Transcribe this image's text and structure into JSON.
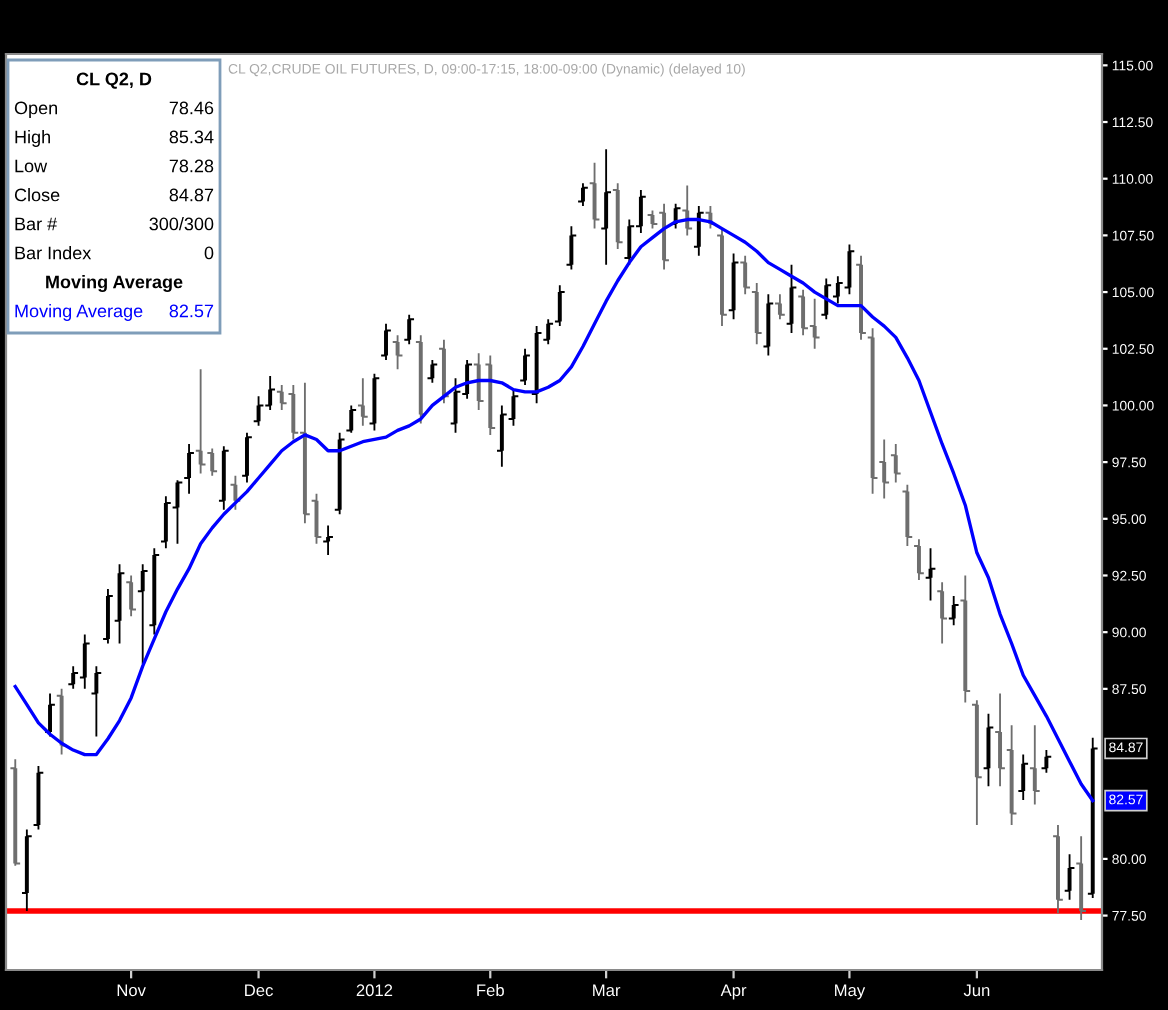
{
  "chart_data": {
    "type": "candlestick",
    "title": "CL Q2, D",
    "subtitle": "CL Q2,CRUDE OIL FUTURES, D, 09:00-17:15, 18:00-09:00 (Dynamic) (delayed 10)",
    "categories": [
      null,
      null,
      null,
      null,
      null,
      null,
      null,
      null,
      null,
      null,
      "Nov",
      null,
      null,
      null,
      null,
      null,
      null,
      null,
      null,
      null,
      null,
      "Dec",
      null,
      null,
      null,
      null,
      null,
      null,
      null,
      null,
      null,
      "2012",
      null,
      null,
      null,
      null,
      null,
      null,
      null,
      null,
      null,
      "Feb",
      null,
      null,
      null,
      null,
      null,
      null,
      null,
      null,
      null,
      "Mar",
      null,
      null,
      null,
      null,
      null,
      null,
      null,
      null,
      null,
      null,
      "Apr",
      null,
      null,
      null,
      null,
      null,
      null,
      null,
      null,
      null,
      "May",
      null,
      null,
      null,
      null,
      null,
      null,
      null,
      null,
      null,
      null,
      "Jun",
      null,
      null,
      null,
      null,
      null,
      null,
      null,
      null,
      null,
      null
    ],
    "ohlc": [
      [
        84.0,
        84.4,
        79.7,
        79.8
      ],
      [
        78.5,
        81.3,
        77.7,
        81.0
      ],
      [
        81.5,
        84.1,
        81.3,
        83.8
      ],
      [
        85.6,
        87.3,
        85.4,
        86.8
      ],
      [
        87.2,
        87.5,
        84.6,
        85.0
      ],
      [
        87.7,
        88.5,
        87.5,
        88.2
      ],
      [
        88.0,
        89.9,
        87.5,
        89.5
      ],
      [
        87.3,
        88.5,
        85.4,
        88.2
      ],
      [
        89.7,
        91.9,
        89.5,
        91.6
      ],
      [
        90.5,
        93.0,
        89.5,
        92.6
      ],
      [
        92.2,
        92.5,
        90.7,
        91.0
      ],
      [
        91.8,
        93.0,
        88.6,
        92.7
      ],
      [
        90.3,
        93.7,
        89.9,
        93.4
      ],
      [
        94.0,
        96.0,
        93.7,
        95.7
      ],
      [
        95.5,
        96.7,
        93.9,
        96.6
      ],
      [
        96.8,
        98.3,
        96.1,
        97.9
      ],
      [
        98.0,
        101.6,
        97.0,
        97.4
      ],
      [
        97.9,
        98.1,
        96.9,
        97.1
      ],
      [
        95.8,
        98.2,
        95.4,
        98.0
      ],
      [
        96.5,
        96.9,
        95.4,
        95.8
      ],
      [
        96.9,
        98.8,
        96.6,
        98.6
      ],
      [
        99.3,
        100.4,
        99.1,
        100.0
      ],
      [
        100.0,
        101.3,
        99.8,
        100.7
      ],
      [
        100.6,
        100.9,
        99.8,
        100.1
      ],
      [
        100.5,
        100.9,
        98.5,
        98.8
      ],
      [
        98.8,
        101.0,
        94.8,
        95.2
      ],
      [
        95.8,
        96.1,
        93.9,
        94.2
      ],
      [
        94.0,
        94.7,
        93.4,
        94.2
      ],
      [
        95.4,
        98.8,
        95.2,
        98.5
      ],
      [
        98.9,
        100.0,
        98.8,
        99.8
      ],
      [
        100.0,
        101.2,
        99.1,
        99.5
      ],
      [
        99.2,
        101.4,
        98.9,
        101.2
      ],
      [
        102.2,
        103.6,
        102.0,
        103.3
      ],
      [
        102.8,
        103.1,
        101.6,
        102.2
      ],
      [
        102.9,
        104.0,
        102.7,
        103.8
      ],
      [
        102.8,
        103.1,
        99.2,
        99.6
      ],
      [
        101.2,
        102.0,
        101.0,
        101.8
      ],
      [
        102.5,
        102.9,
        100.1,
        100.4
      ],
      [
        99.2,
        101.2,
        98.8,
        100.6
      ],
      [
        100.5,
        102.0,
        100.3,
        101.8
      ],
      [
        101.8,
        102.3,
        99.8,
        100.2
      ],
      [
        101.8,
        102.2,
        98.7,
        99.0
      ],
      [
        98.0,
        100.0,
        97.3,
        99.6
      ],
      [
        99.4,
        100.7,
        99.1,
        100.4
      ],
      [
        101.1,
        102.5,
        100.9,
        102.2
      ],
      [
        100.5,
        103.5,
        100.1,
        103.2
      ],
      [
        102.9,
        103.8,
        102.7,
        103.6
      ],
      [
        103.7,
        105.3,
        103.5,
        105.0
      ],
      [
        106.2,
        107.9,
        106.0,
        107.5
      ],
      [
        109.0,
        109.8,
        108.8,
        109.6
      ],
      [
        109.8,
        110.7,
        107.8,
        108.2
      ],
      [
        107.8,
        111.3,
        106.2,
        109.4
      ],
      [
        109.5,
        109.8,
        106.9,
        107.2
      ],
      [
        106.5,
        108.2,
        106.2,
        107.9
      ],
      [
        107.9,
        109.5,
        107.6,
        109.2
      ],
      [
        108.4,
        108.6,
        107.8,
        108.0
      ],
      [
        108.5,
        108.9,
        106.0,
        106.4
      ],
      [
        108.0,
        108.9,
        107.8,
        108.7
      ],
      [
        108.6,
        109.7,
        107.5,
        107.8
      ],
      [
        107.0,
        108.8,
        106.6,
        108.5
      ],
      [
        108.5,
        108.8,
        107.8,
        108.0
      ],
      [
        107.5,
        107.8,
        103.5,
        104.0
      ],
      [
        104.2,
        106.7,
        103.8,
        106.3
      ],
      [
        106.3,
        106.6,
        104.9,
        105.2
      ],
      [
        105.0,
        105.4,
        102.7,
        103.2
      ],
      [
        102.6,
        104.9,
        102.2,
        104.5
      ],
      [
        104.5,
        104.9,
        103.8,
        104.0
      ],
      [
        103.6,
        106.2,
        103.2,
        105.2
      ],
      [
        104.8,
        105.1,
        103.1,
        103.4
      ],
      [
        103.5,
        104.7,
        102.5,
        103.0
      ],
      [
        104.0,
        105.6,
        103.8,
        105.3
      ],
      [
        104.8,
        105.7,
        104.5,
        105.4
      ],
      [
        105.2,
        107.1,
        104.9,
        106.8
      ],
      [
        106.2,
        106.6,
        102.9,
        103.2
      ],
      [
        103.0,
        103.4,
        96.1,
        96.8
      ],
      [
        97.5,
        98.5,
        95.9,
        96.6
      ],
      [
        97.8,
        98.3,
        96.6,
        97.0
      ],
      [
        96.2,
        96.5,
        93.8,
        94.2
      ],
      [
        93.8,
        94.1,
        92.3,
        92.6
      ],
      [
        92.4,
        93.7,
        91.4,
        92.8
      ],
      [
        91.8,
        92.2,
        89.5,
        90.6
      ],
      [
        90.6,
        91.6,
        90.3,
        91.2
      ],
      [
        91.4,
        92.5,
        86.9,
        87.4
      ],
      [
        86.8,
        87.0,
        81.5,
        83.6
      ],
      [
        84.0,
        86.4,
        83.2,
        85.8
      ],
      [
        85.6,
        87.3,
        83.2,
        84.0
      ],
      [
        84.8,
        85.9,
        81.5,
        82.0
      ],
      [
        83.0,
        84.6,
        82.6,
        84.2
      ],
      [
        84.0,
        85.9,
        82.4,
        83.0
      ],
      [
        84.0,
        84.8,
        83.8,
        84.5
      ],
      [
        81.0,
        81.5,
        77.6,
        78.2
      ],
      [
        78.6,
        80.2,
        78.2,
        79.6
      ],
      [
        79.8,
        81.0,
        77.3,
        77.7
      ],
      [
        78.46,
        85.34,
        78.28,
        84.87
      ]
    ],
    "colors": [
      "#6e6e6e",
      "#000000",
      "#000000",
      "#000000",
      "#6e6e6e",
      "#000000",
      "#000000",
      "#000000",
      "#000000",
      "#000000",
      "#6e6e6e",
      "#000000",
      "#000000",
      "#000000",
      "#000000",
      "#000000",
      "#6e6e6e",
      "#6e6e6e",
      "#000000",
      "#6e6e6e",
      "#000000",
      "#000000",
      "#000000",
      "#6e6e6e",
      "#6e6e6e",
      "#6e6e6e",
      "#6e6e6e",
      "#000000",
      "#000000",
      "#000000",
      "#6e6e6e",
      "#000000",
      "#000000",
      "#6e6e6e",
      "#000000",
      "#6e6e6e",
      "#000000",
      "#6e6e6e",
      "#000000",
      "#000000",
      "#6e6e6e",
      "#6e6e6e",
      "#000000",
      "#000000",
      "#000000",
      "#000000",
      "#000000",
      "#000000",
      "#000000",
      "#000000",
      "#6e6e6e",
      "#000000",
      "#6e6e6e",
      "#000000",
      "#000000",
      "#6e6e6e",
      "#6e6e6e",
      "#000000",
      "#6e6e6e",
      "#000000",
      "#6e6e6e",
      "#6e6e6e",
      "#000000",
      "#6e6e6e",
      "#6e6e6e",
      "#000000",
      "#6e6e6e",
      "#000000",
      "#6e6e6e",
      "#6e6e6e",
      "#000000",
      "#000000",
      "#000000",
      "#6e6e6e",
      "#6e6e6e",
      "#6e6e6e",
      "#6e6e6e",
      "#6e6e6e",
      "#6e6e6e",
      "#000000",
      "#6e6e6e",
      "#000000",
      "#6e6e6e",
      "#6e6e6e",
      "#000000",
      "#6e6e6e",
      "#6e6e6e",
      "#000000",
      "#6e6e6e",
      "#000000",
      "#6e6e6e",
      "#000000",
      "#6e6e6e",
      "#000000"
    ],
    "series": [
      {
        "type": "line",
        "name": "Moving Average",
        "color": "#0000ff",
        "values": [
          87.6,
          86.8,
          86.0,
          85.5,
          85.1,
          84.8,
          84.6,
          84.6,
          85.3,
          86.1,
          87.1,
          88.5,
          89.7,
          90.9,
          91.9,
          92.8,
          93.9,
          94.6,
          95.2,
          95.7,
          96.2,
          96.8,
          97.4,
          98.0,
          98.4,
          98.7,
          98.5,
          98.0,
          98.0,
          98.2,
          98.4,
          98.5,
          98.6,
          98.9,
          99.1,
          99.4,
          100.0,
          100.4,
          100.8,
          101.0,
          101.1,
          101.1,
          101.0,
          100.7,
          100.6,
          100.6,
          100.8,
          101.1,
          101.7,
          102.6,
          103.6,
          104.6,
          105.5,
          106.3,
          107.0,
          107.4,
          107.8,
          108.1,
          108.2,
          108.2,
          108.1,
          107.8,
          107.5,
          107.2,
          106.8,
          106.3,
          106.0,
          105.7,
          105.4,
          105.0,
          104.7,
          104.4,
          104.4,
          104.4,
          103.9,
          103.5,
          103.0,
          102.1,
          101.1,
          99.7,
          98.3,
          97.0,
          95.6,
          93.5,
          92.4,
          90.8,
          89.5,
          88.1,
          87.2,
          86.3,
          85.3,
          84.3,
          83.3,
          82.57
        ]
      }
    ],
    "ylim": [
      75.1,
      115.5
    ],
    "yticks": [
      {
        "value": 77.5,
        "label": "77.50"
      },
      {
        "value": 80,
        "label": "80.00"
      },
      {
        "value": 87.5,
        "label": "87.50"
      },
      {
        "value": 90,
        "label": "90.00"
      },
      {
        "value": 92.5,
        "label": "92.50"
      },
      {
        "value": 95,
        "label": "95.00"
      },
      {
        "value": 97.5,
        "label": "97.50"
      },
      {
        "value": 100,
        "label": "100.00"
      },
      {
        "value": 102.5,
        "label": "102.50"
      },
      {
        "value": 105,
        "label": "105.00"
      },
      {
        "value": 107.5,
        "label": "107.50"
      },
      {
        "value": 110,
        "label": "110.00"
      },
      {
        "value": 112.5,
        "label": "112.50"
      },
      {
        "value": 115,
        "label": "115.00"
      }
    ],
    "ref_lines": [
      {
        "axis": "y",
        "value": 77.7,
        "color": "#ff0000"
      }
    ],
    "annotations": [
      "Open\t78.46",
      "High\t85.34",
      "Low\t78.28",
      "Close\t84.87",
      "Bar #\t300/300",
      "Bar Index\t0",
      "Moving Average",
      {
        "text": "84.87",
        "y": 84.87
      },
      {
        "text": "82.57",
        "y": 82.57
      }
    ],
    "legend": "top left"
  }
}
